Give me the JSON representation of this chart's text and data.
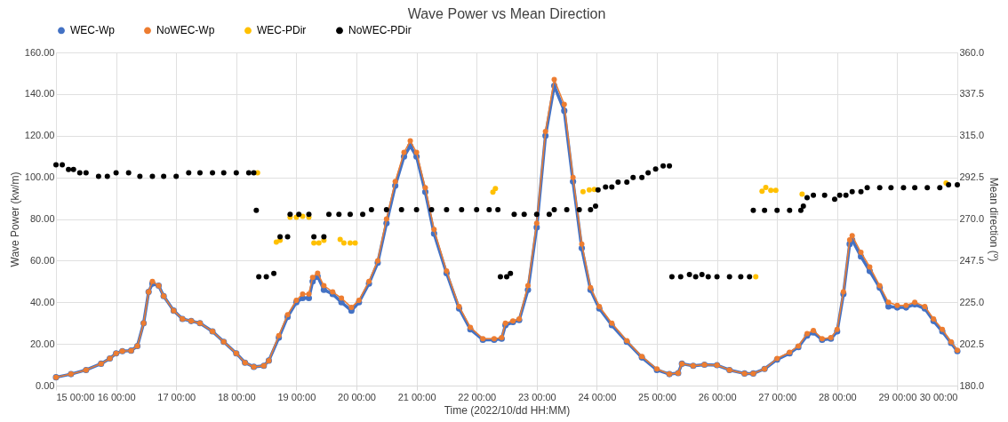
{
  "chart_data": {
    "type": "line",
    "title": "Wave Power vs Mean Direction",
    "xlabel": "Time (2022/10/dd HH:MM)",
    "ylabel": "Wave Power (kw/m)",
    "y2label": "Mean direction (º)",
    "xlim": [
      "2022-10-15",
      "2022-10-30"
    ],
    "xticks": [
      {
        "value": "2022-10-15",
        "label": "15 00:00"
      },
      {
        "value": "2022-10-16",
        "label": "16 00:00"
      },
      {
        "value": "2022-10-17",
        "label": "17 00:00"
      },
      {
        "value": "2022-10-18",
        "label": "18 00:00"
      },
      {
        "value": "2022-10-19",
        "label": "19 00:00"
      },
      {
        "value": "2022-10-20",
        "label": "20 00:00"
      },
      {
        "value": "2022-10-21",
        "label": "21 00:00"
      },
      {
        "value": "2022-10-22",
        "label": "22 00:00"
      },
      {
        "value": "2022-10-23",
        "label": "23 00:00"
      },
      {
        "value": "2022-10-24",
        "label": "24 00:00"
      },
      {
        "value": "2022-10-25",
        "label": "25 00:00"
      },
      {
        "value": "2022-10-26",
        "label": "26 00:00"
      },
      {
        "value": "2022-10-27",
        "label": "27 00:00"
      },
      {
        "value": "2022-10-28",
        "label": "28 00:00"
      },
      {
        "value": "2022-10-29",
        "label": "29 00:00"
      },
      {
        "value": "2022-10-30",
        "label": "30 00:00"
      }
    ],
    "ylim": [
      0,
      160
    ],
    "yticks": [
      {
        "value": 0,
        "label": "0.00"
      },
      {
        "value": 20,
        "label": "20.00"
      },
      {
        "value": 40,
        "label": "40.00"
      },
      {
        "value": 60,
        "label": "60.00"
      },
      {
        "value": 80,
        "label": "80.00"
      },
      {
        "value": 100,
        "label": "100.00"
      },
      {
        "value": 120,
        "label": "120.00"
      },
      {
        "value": 140,
        "label": "140.00"
      },
      {
        "value": 160,
        "label": "160.00"
      }
    ],
    "y2lim": [
      180,
      360
    ],
    "y2ticks": [
      {
        "value": 180,
        "label": "180.0"
      },
      {
        "value": 202.5,
        "label": "202.5"
      },
      {
        "value": 225,
        "label": "225.0"
      },
      {
        "value": 247.5,
        "label": "247.5"
      },
      {
        "value": 270,
        "label": "270.0"
      },
      {
        "value": 292.5,
        "label": "292.5"
      },
      {
        "value": 315,
        "label": "315.0"
      },
      {
        "value": 337.5,
        "label": "337.5"
      },
      {
        "value": 360,
        "label": "360.0"
      }
    ],
    "grid": true,
    "legend": "top",
    "marker": "circle",
    "line_style": "solid",
    "x": [
      "2022-10-15T00:00",
      "2022-10-15T06:00",
      "2022-10-15T12:00",
      "2022-10-15T18:00",
      "2022-10-15T21:30",
      "2022-10-16T00:00",
      "2022-10-16T02:30",
      "2022-10-16T06:00",
      "2022-10-16T08:30",
      "2022-10-16T11:00",
      "2022-10-16T13:00",
      "2022-10-16T14:30",
      "2022-10-16T17:00",
      "2022-10-16T19:00",
      "2022-10-16T23:00",
      "2022-10-17T02:30",
      "2022-10-17T06:00",
      "2022-10-17T09:30",
      "2022-10-17T14:30",
      "2022-10-17T19:00",
      "2022-10-18T00:00",
      "2022-10-18T03:30",
      "2022-10-18T07:00",
      "2022-10-18T11:00",
      "2022-10-18T13:00",
      "2022-10-18T17:00",
      "2022-10-18T20:30",
      "2022-10-19T00:00",
      "2022-10-19T02:30",
      "2022-10-19T05:00",
      "2022-10-19T06:30",
      "2022-10-19T08:30",
      "2022-10-19T11:00",
      "2022-10-19T14:30",
      "2022-10-19T18:00",
      "2022-10-19T22:00",
      "2022-10-20T01:00",
      "2022-10-20T05:00",
      "2022-10-20T08:30",
      "2022-10-20T12:00",
      "2022-10-20T15:30",
      "2022-10-20T19:00",
      "2022-10-20T21:30",
      "2022-10-21T00:00",
      "2022-10-21T03:30",
      "2022-10-21T07:00",
      "2022-10-21T12:00",
      "2022-10-21T17:00",
      "2022-10-21T21:30",
      "2022-10-22T02:30",
      "2022-10-22T07:00",
      "2022-10-22T10:00",
      "2022-10-22T11:30",
      "2022-10-22T14:30",
      "2022-10-22T17:00",
      "2022-10-22T20:30",
      "2022-10-23T00:00",
      "2022-10-23T03:30",
      "2022-10-23T07:00",
      "2022-10-23T11:00",
      "2022-10-23T14:30",
      "2022-10-23T18:00",
      "2022-10-23T21:30",
      "2022-10-24T01:00",
      "2022-10-24T06:00",
      "2022-10-24T12:00",
      "2022-10-24T18:00",
      "2022-10-25T00:00",
      "2022-10-25T05:00",
      "2022-10-25T08:30",
      "2022-10-25T10:00",
      "2022-10-25T14:30",
      "2022-10-25T19:00",
      "2022-10-26T00:00",
      "2022-10-26T05:00",
      "2022-10-26T11:00",
      "2022-10-26T14:30",
      "2022-10-26T19:00",
      "2022-10-27T00:00",
      "2022-10-27T05:00",
      "2022-10-27T08:30",
      "2022-10-27T12:00",
      "2022-10-27T14:30",
      "2022-10-27T18:00",
      "2022-10-27T21:30",
      "2022-10-28T00:00",
      "2022-10-28T02:30",
      "2022-10-28T05:00",
      "2022-10-28T06:00",
      "2022-10-28T09:30",
      "2022-10-28T13:00",
      "2022-10-28T17:00",
      "2022-10-28T20:30",
      "2022-10-29T00:00",
      "2022-10-29T03:30",
      "2022-10-29T07:00",
      "2022-10-29T11:00",
      "2022-10-29T14:30",
      "2022-10-29T18:00",
      "2022-10-29T21:30",
      "2022-10-30T00:00"
    ],
    "series": [
      {
        "name": "WEC-Wp",
        "color": "#4472c4",
        "values": [
          4,
          5.5,
          7.5,
          10.5,
          13,
          15.5,
          16.5,
          16.8,
          19,
          30,
          45,
          49,
          48,
          43,
          36,
          32,
          31,
          30,
          26,
          21,
          15.5,
          11,
          9,
          9.5,
          12,
          23,
          33,
          40,
          42,
          42,
          50,
          52.5,
          46,
          44,
          40,
          36,
          40,
          49,
          59,
          78,
          96,
          110,
          115,
          110,
          93,
          73,
          54,
          37,
          27,
          22,
          22,
          22.5,
          29,
          30.5,
          31.5,
          46,
          76,
          120,
          144,
          132,
          98,
          66,
          46,
          37,
          29,
          21,
          13.5,
          7.5,
          5.5,
          6,
          10.5,
          9.5,
          10,
          9.8,
          7.5,
          5.8,
          5.8,
          8,
          12.5,
          15.5,
          18.5,
          24,
          25.5,
          22,
          22.5,
          26,
          44,
          68,
          70,
          62,
          55,
          47,
          38,
          37.5,
          37.5,
          39,
          37,
          31,
          26,
          20.5,
          16.5
        ]
      },
      {
        "name": "NoWEC-Wp",
        "color": "#ed7d31",
        "values": [
          4,
          5.5,
          7.5,
          10.5,
          13,
          15.5,
          16.5,
          16.8,
          19,
          30,
          45,
          50,
          48,
          43,
          36,
          32,
          31,
          30,
          26,
          21,
          15.5,
          11,
          9,
          9.5,
          12,
          24,
          34,
          41,
          44,
          44,
          52,
          54,
          48,
          45,
          42,
          37.5,
          41,
          50,
          60,
          80,
          98,
          112,
          117.5,
          112,
          95,
          75,
          55,
          38,
          28,
          22.5,
          22.5,
          23,
          30,
          31,
          32,
          48,
          78,
          122,
          147,
          135,
          100,
          68,
          47,
          38,
          30,
          21.5,
          14,
          8,
          5.5,
          6,
          10.5,
          9.5,
          10,
          9.8,
          7.5,
          5.8,
          5.8,
          8,
          13,
          16,
          19,
          25,
          26.5,
          22.5,
          23,
          27,
          45,
          70,
          72,
          64,
          57,
          48,
          40,
          38.5,
          38.5,
          40,
          38,
          32,
          27,
          21,
          17
        ]
      },
      {
        "name": "WEC-PDir",
        "type": "scatter",
        "axis": "y2",
        "color": "#ffc000",
        "x": [
          "2022-10-18T08:30",
          "2022-10-18T16:00",
          "2022-10-18T17:30",
          "2022-10-18T21:30",
          "2022-10-19T00:00",
          "2022-10-19T02:30",
          "2022-10-19T05:00",
          "2022-10-19T07:00",
          "2022-10-19T09:00",
          "2022-10-19T11:00",
          "2022-10-19T17:30",
          "2022-10-19T19:00",
          "2022-10-19T21:30",
          "2022-10-19T23:30",
          "2022-10-22T06:30",
          "2022-10-22T07:30",
          "2022-10-23T18:30",
          "2022-10-23T21:00",
          "2022-10-23T23:00",
          "2022-10-26T15:30",
          "2022-10-26T18:00",
          "2022-10-26T19:30",
          "2022-10-26T21:30",
          "2022-10-26T23:30",
          "2022-10-27T10:00",
          "2022-10-29T19:30"
        ],
        "values": [
          295,
          257.5,
          258.5,
          271,
          271,
          271.5,
          271,
          257,
          257,
          258.5,
          259,
          257,
          257,
          257,
          284.5,
          286.5,
          284.8,
          285.7,
          286,
          238.8,
          285,
          287,
          285.5,
          285.5,
          283.5,
          289.5
        ]
      },
      {
        "name": "NoWEC-PDir",
        "type": "scatter",
        "axis": "y2",
        "color": "#000000",
        "x": [
          "2022-10-15T00:00",
          "2022-10-15T02:30",
          "2022-10-15T05:00",
          "2022-10-15T07:00",
          "2022-10-15T09:30",
          "2022-10-15T12:00",
          "2022-10-15T17:00",
          "2022-10-15T20:30",
          "2022-10-16T00:00",
          "2022-10-16T05:00",
          "2022-10-16T09:30",
          "2022-10-16T14:30",
          "2022-10-16T19:00",
          "2022-10-17T00:00",
          "2022-10-17T05:00",
          "2022-10-17T09:30",
          "2022-10-17T14:30",
          "2022-10-17T19:00",
          "2022-10-18T00:00",
          "2022-10-18T05:00",
          "2022-10-18T07:00",
          "2022-10-18T08:00",
          "2022-10-18T09:00",
          "2022-10-18T12:00",
          "2022-10-18T15:00",
          "2022-10-18T17:30",
          "2022-10-18T20:30",
          "2022-10-18T21:30",
          "2022-10-19T01:00",
          "2022-10-19T05:00",
          "2022-10-19T07:00",
          "2022-10-19T11:00",
          "2022-10-19T13:00",
          "2022-10-19T17:00",
          "2022-10-19T21:30",
          "2022-10-20T02:30",
          "2022-10-20T06:00",
          "2022-10-20T12:00",
          "2022-10-20T18:00",
          "2022-10-21T00:00",
          "2022-10-21T06:00",
          "2022-10-21T12:00",
          "2022-10-21T18:00",
          "2022-10-22T00:00",
          "2022-10-22T05:00",
          "2022-10-22T08:30",
          "2022-10-22T09:30",
          "2022-10-22T12:00",
          "2022-10-22T13:30",
          "2022-10-22T15:00",
          "2022-10-22T19:00",
          "2022-10-23T00:00",
          "2022-10-23T05:00",
          "2022-10-23T07:00",
          "2022-10-23T12:00",
          "2022-10-23T17:00",
          "2022-10-23T21:30",
          "2022-10-23T23:30",
          "2022-10-24T00:30",
          "2022-10-24T03:30",
          "2022-10-24T06:00",
          "2022-10-24T08:30",
          "2022-10-24T12:00",
          "2022-10-24T14:30",
          "2022-10-24T18:00",
          "2022-10-24T20:30",
          "2022-10-24T23:30",
          "2022-10-25T02:30",
          "2022-10-25T05:00",
          "2022-10-25T06:00",
          "2022-10-25T09:30",
          "2022-10-25T13:00",
          "2022-10-25T15:30",
          "2022-10-25T18:00",
          "2022-10-25T20:30",
          "2022-10-26T00:00",
          "2022-10-26T05:00",
          "2022-10-26T09:30",
          "2022-10-26T13:00",
          "2022-10-26T14:30",
          "2022-10-26T19:00",
          "2022-10-27T00:00",
          "2022-10-27T05:00",
          "2022-10-27T09:30",
          "2022-10-27T10:30",
          "2022-10-27T12:00",
          "2022-10-27T14:30",
          "2022-10-27T19:00",
          "2022-10-27T23:00",
          "2022-10-28T01:00",
          "2022-10-28T03:30",
          "2022-10-28T06:00",
          "2022-10-28T09:30",
          "2022-10-28T12:00",
          "2022-10-28T17:00",
          "2022-10-28T21:30",
          "2022-10-29T02:30",
          "2022-10-29T07:00",
          "2022-10-29T12:00",
          "2022-10-29T17:00",
          "2022-10-29T20:30",
          "2022-10-30T00:00"
        ],
        "values": [
          299.3,
          299.3,
          296.8,
          296.8,
          295,
          295,
          293,
          293,
          295,
          295,
          293,
          293,
          293,
          293,
          295,
          295,
          295,
          295,
          295,
          295,
          295,
          274.7,
          238.8,
          238.8,
          240.6,
          260.4,
          260.4,
          272.5,
          272.5,
          272.5,
          260.4,
          260.4,
          272.5,
          272.5,
          272.5,
          272.5,
          275,
          275,
          275,
          275,
          275,
          275,
          275,
          275,
          275,
          275,
          238.8,
          238.8,
          240.6,
          272.5,
          272.5,
          272.5,
          272.5,
          275,
          275,
          275,
          275,
          277,
          285.7,
          287.3,
          287.3,
          289.9,
          289.9,
          292.4,
          292.4,
          295,
          297,
          298.7,
          298.7,
          238.8,
          238.8,
          240,
          238.8,
          240,
          238.8,
          238.8,
          238.8,
          238.8,
          238.8,
          274.7,
          274.7,
          274.7,
          274.7,
          274.7,
          277,
          281.5,
          282.8,
          282.8,
          280.7,
          282.8,
          282.8,
          284.8,
          284.8,
          286.9,
          286.9,
          286.9,
          286.9,
          286.9,
          286.9,
          286.9,
          288.5,
          288.5
        ]
      }
    ]
  }
}
